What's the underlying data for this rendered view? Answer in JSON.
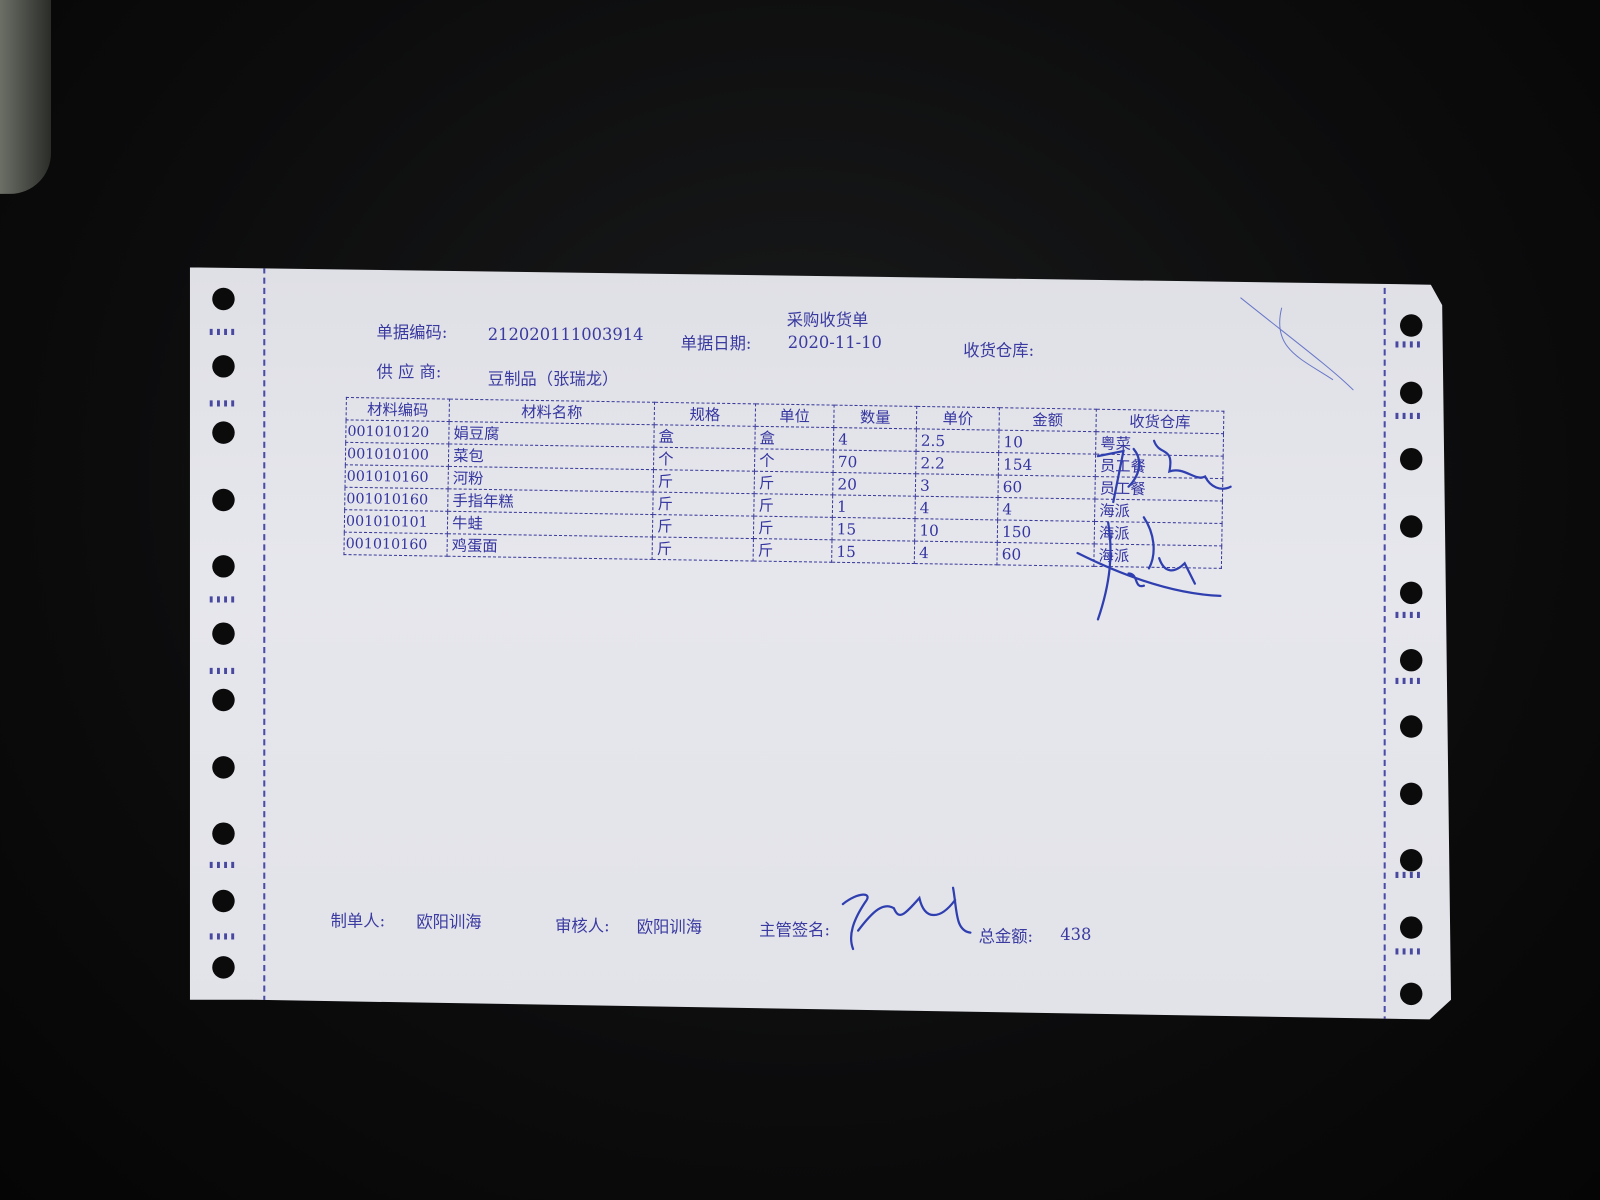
{
  "document": {
    "title": "采购收货单",
    "fields": {
      "doc_no_label": "单据编码:",
      "doc_no": "212020111003914",
      "date_label": "单据日期:",
      "date": "2020-11-10",
      "warehouse_label": "收货仓库:",
      "supplier_label": "供 应 商:",
      "supplier": "豆制品（张瑞龙）"
    },
    "table": {
      "headers": [
        "材料编码",
        "材料名称",
        "规格",
        "单位",
        "数量",
        "单价",
        "金额",
        "收货仓库"
      ],
      "rows": [
        [
          "001010120",
          "娟豆腐",
          "盒",
          "盒",
          "4",
          "2.5",
          "10",
          "粤菜"
        ],
        [
          "001010100",
          "菜包",
          "个",
          "个",
          "70",
          "2.2",
          "154",
          "员工餐"
        ],
        [
          "001010160",
          "河粉",
          "斤",
          "斤",
          "20",
          "3",
          "60",
          "员工餐"
        ],
        [
          "001010160",
          "手指年糕",
          "斤",
          "斤",
          "1",
          "4",
          "4",
          "海派"
        ],
        [
          "001010101",
          "牛蛙",
          "斤",
          "斤",
          "15",
          "10",
          "150",
          "海派"
        ],
        [
          "001010160",
          "鸡蛋面",
          "斤",
          "斤",
          "15",
          "4",
          "60",
          "海派"
        ]
      ]
    },
    "footer": {
      "maker_label": "制单人:",
      "maker": "欧阳训海",
      "reviewer_label": "审核人:",
      "reviewer": "欧阳训海",
      "supervisor_label": "主管签名:",
      "total_label": "总金额:",
      "total": "438"
    }
  },
  "colors": {
    "ink": "#3a3aa0",
    "paper": "#e3e4ea",
    "background": "#0c0c0d"
  }
}
